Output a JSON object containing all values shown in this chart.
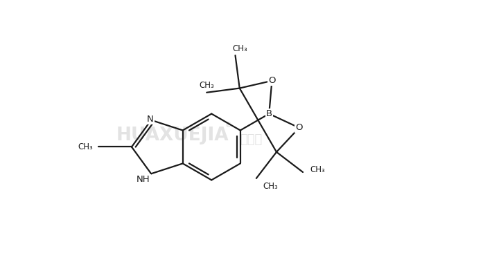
{
  "background_color": "#ffffff",
  "line_color": "#1a1a1a",
  "line_width": 1.6,
  "font_size": 8.5,
  "fig_width": 6.97,
  "fig_height": 4.05,
  "dpi": 100,
  "xlim": [
    0,
    10
  ],
  "ylim": [
    0,
    6
  ]
}
